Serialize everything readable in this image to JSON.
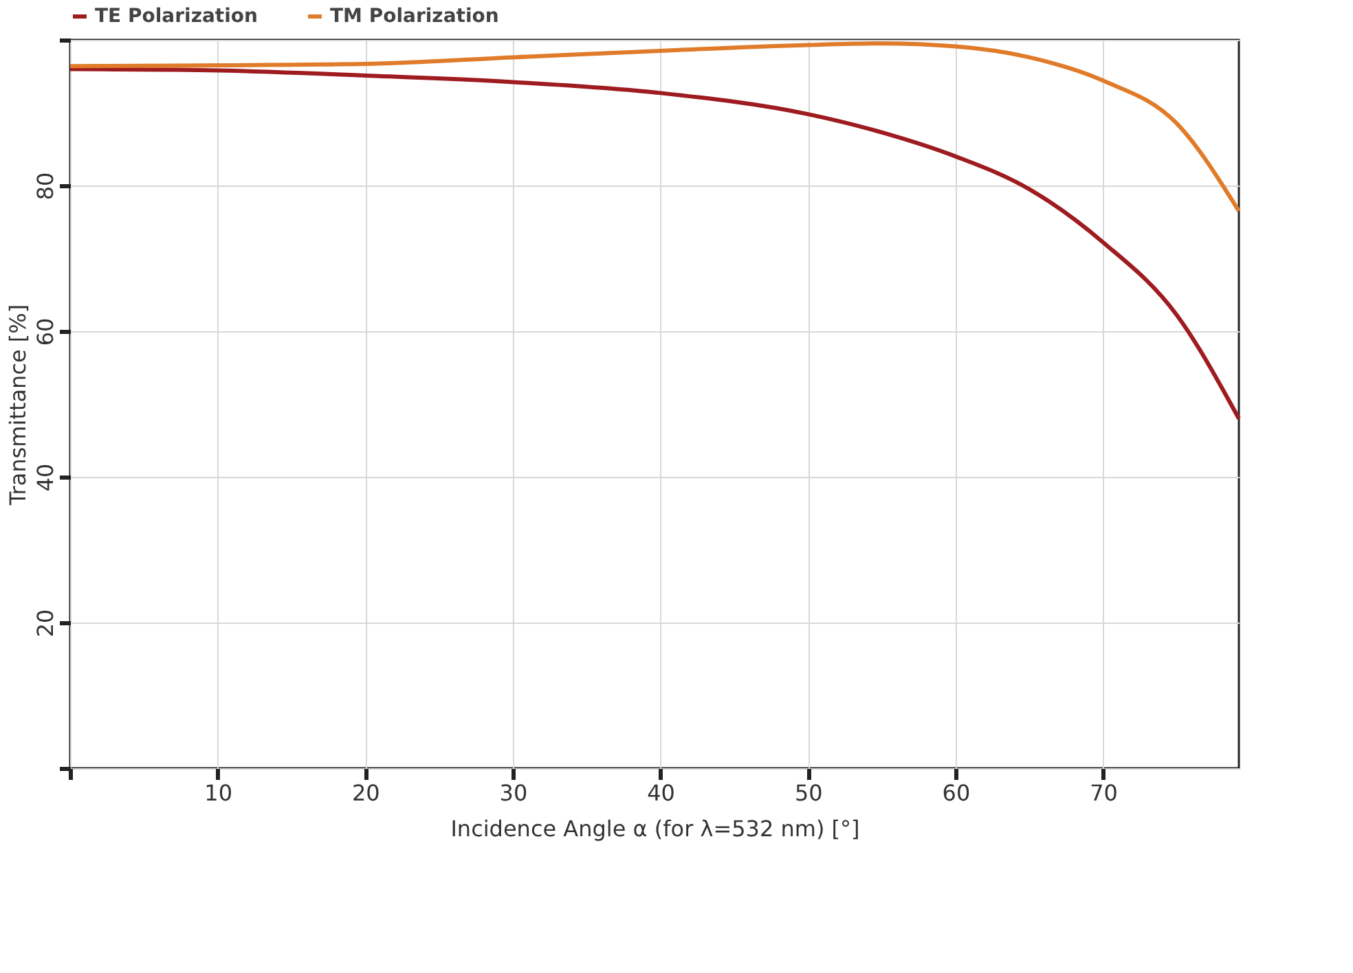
{
  "chart_data": {
    "type": "line",
    "xlabel": "Incidence Angle α (for λ=532 nm) [°]",
    "ylabel": "Transmittance [%]",
    "x": [
      0,
      10,
      20,
      30,
      40,
      50,
      55,
      60,
      65,
      70,
      75,
      79.2
    ],
    "series": [
      {
        "name": "TE Polarization",
        "color": "#9e1b20",
        "values": [
          96,
          95.8,
          95.1,
          94.2,
          92.7,
          89.8,
          87.3,
          84,
          79.5,
          72.2,
          62.2,
          48
        ]
      },
      {
        "name": "TM Polarization",
        "color": "#e07b2a",
        "values": [
          96.4,
          96.5,
          96.7,
          97.6,
          98.5,
          99.3,
          99.5,
          99.1,
          97.6,
          94.4,
          88.5,
          76.5
        ]
      }
    ],
    "xlim": [
      0,
      79.2
    ],
    "xticks": [
      {
        "value": 0,
        "label": null
      },
      10,
      20,
      30,
      40,
      50,
      60,
      70
    ],
    "ylim": [
      0,
      100
    ],
    "yticks": [
      {
        "value": 0,
        "label": null
      },
      20,
      40,
      60,
      80,
      {
        "value": 100,
        "label": null
      }
    ],
    "grid": true,
    "legend": "top left",
    "marker": "none",
    "line_style": "solid"
  }
}
